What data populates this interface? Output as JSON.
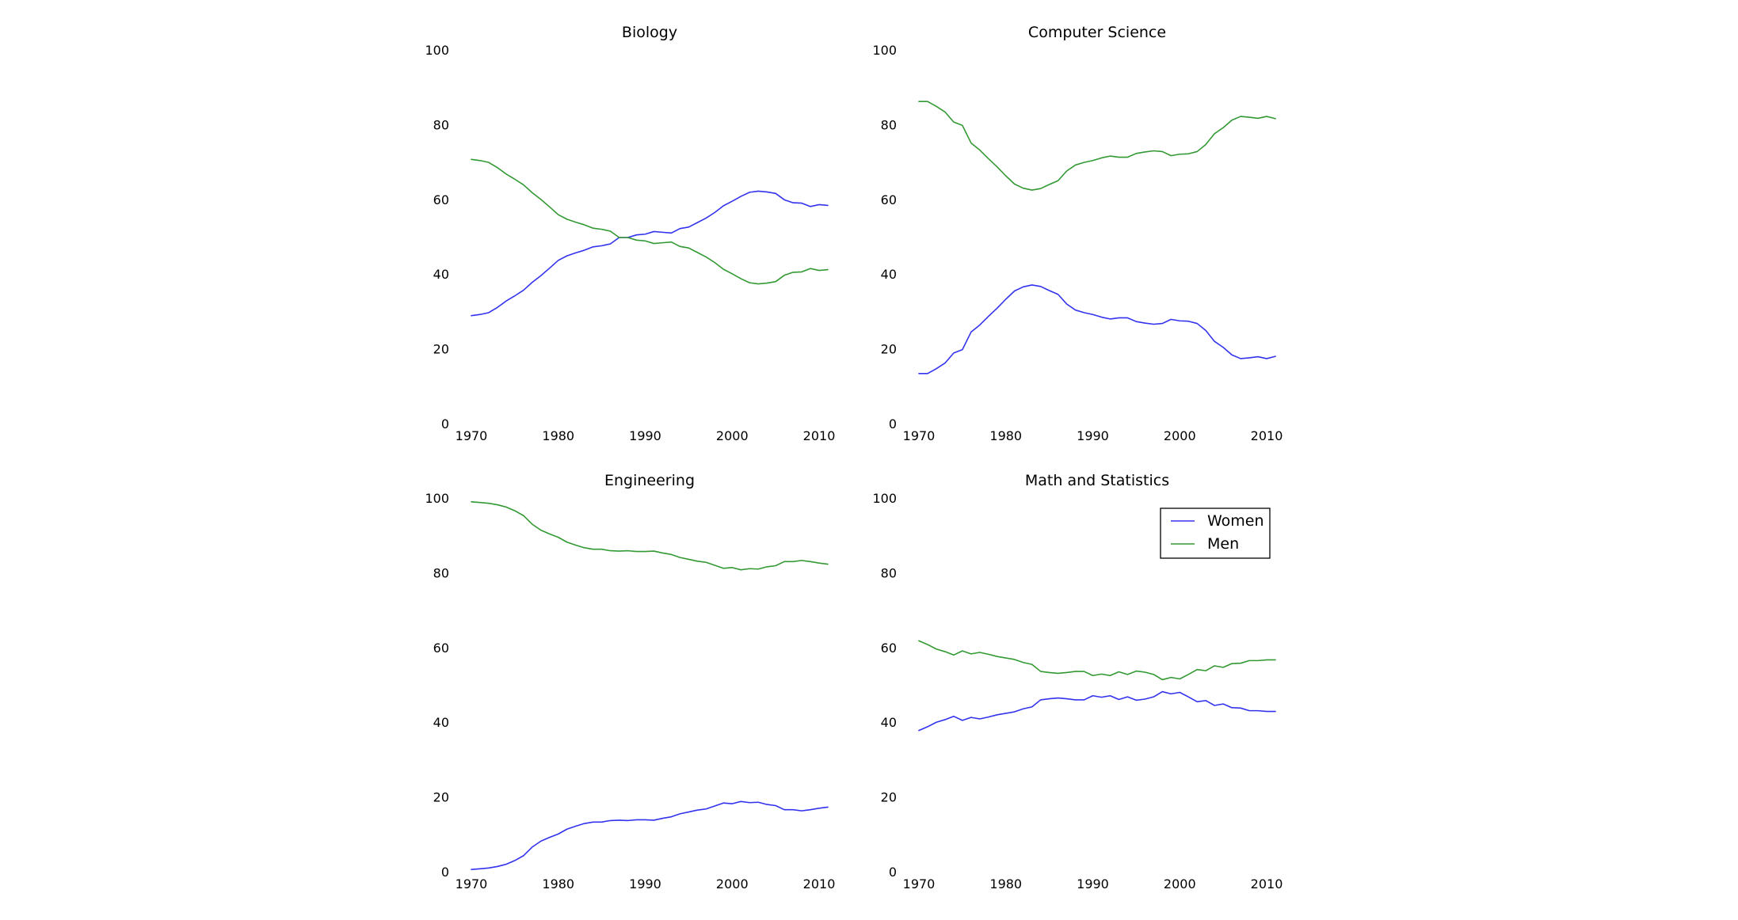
{
  "chart_data": [
    {
      "type": "line",
      "title": "Biology",
      "xlabel": "",
      "ylabel": "",
      "xlim": [
        1970,
        2011
      ],
      "ylim": [
        0,
        100
      ],
      "xticks": [
        "1970",
        "1980",
        "1990",
        "2000",
        "2010"
      ],
      "yticks": [
        "0",
        "20",
        "40",
        "60",
        "80",
        "100"
      ],
      "grid": false,
      "x": [
        1970,
        1971,
        1972,
        1973,
        1974,
        1975,
        1976,
        1977,
        1978,
        1979,
        1980,
        1981,
        1982,
        1983,
        1984,
        1985,
        1986,
        1987,
        1988,
        1989,
        1990,
        1991,
        1992,
        1993,
        1994,
        1995,
        1996,
        1997,
        1998,
        1999,
        2000,
        2001,
        2002,
        2003,
        2004,
        2005,
        2006,
        2007,
        2008,
        2009,
        2010,
        2011
      ],
      "series": [
        {
          "name": "Women",
          "color": "#3333ee",
          "values": [
            29.1,
            29.4,
            29.9,
            31.3,
            33.0,
            34.4,
            35.9,
            38.0,
            39.8,
            41.8,
            43.9,
            45.1,
            45.9,
            46.6,
            47.5,
            47.8,
            48.3,
            50.0,
            50.0,
            50.7,
            50.9,
            51.6,
            51.4,
            51.2,
            52.4,
            52.8,
            54.0,
            55.2,
            56.7,
            58.5,
            59.7,
            61.0,
            62.1,
            62.4,
            62.2,
            61.8,
            60.1,
            59.3,
            59.2,
            58.3,
            58.8,
            58.6
          ]
        },
        {
          "name": "Men",
          "color": "#339933",
          "values": [
            70.9,
            70.6,
            70.1,
            68.7,
            67.0,
            65.6,
            64.1,
            62.0,
            60.2,
            58.2,
            56.1,
            54.9,
            54.1,
            53.4,
            52.5,
            52.2,
            51.7,
            50.0,
            50.0,
            49.3,
            49.1,
            48.4,
            48.6,
            48.8,
            47.6,
            47.2,
            46.0,
            44.8,
            43.3,
            41.5,
            40.3,
            39.0,
            37.9,
            37.6,
            37.8,
            38.2,
            39.9,
            40.7,
            40.8,
            41.7,
            41.2,
            41.4
          ]
        }
      ]
    },
    {
      "type": "line",
      "title": "Computer Science",
      "xlabel": "",
      "ylabel": "",
      "xlim": [
        1970,
        2011
      ],
      "ylim": [
        0,
        100
      ],
      "xticks": [
        "1970",
        "1980",
        "1990",
        "2000",
        "2010"
      ],
      "yticks": [
        "0",
        "20",
        "40",
        "60",
        "80",
        "100"
      ],
      "grid": false,
      "x": [
        1970,
        1971,
        1972,
        1973,
        1974,
        1975,
        1976,
        1977,
        1978,
        1979,
        1980,
        1981,
        1982,
        1983,
        1984,
        1985,
        1986,
        1987,
        1988,
        1989,
        1990,
        1991,
        1992,
        1993,
        1994,
        1995,
        1996,
        1997,
        1998,
        1999,
        2000,
        2001,
        2002,
        2003,
        2004,
        2005,
        2006,
        2007,
        2008,
        2009,
        2010,
        2011
      ],
      "series": [
        {
          "name": "Women",
          "color": "#3333ee",
          "values": [
            13.6,
            13.6,
            14.9,
            16.4,
            19.1,
            20.0,
            24.7,
            26.6,
            28.9,
            31.1,
            33.5,
            35.7,
            36.8,
            37.3,
            36.9,
            35.8,
            34.8,
            32.2,
            30.6,
            29.9,
            29.4,
            28.7,
            28.2,
            28.5,
            28.5,
            27.5,
            27.1,
            26.8,
            27.0,
            28.1,
            27.7,
            27.6,
            27.0,
            25.1,
            22.2,
            20.6,
            18.6,
            17.6,
            17.8,
            18.1,
            17.6,
            18.2
          ]
        },
        {
          "name": "Men",
          "color": "#339933",
          "values": [
            86.4,
            86.4,
            85.1,
            83.6,
            80.9,
            80.0,
            75.3,
            73.4,
            71.1,
            68.9,
            66.5,
            64.3,
            63.2,
            62.7,
            63.1,
            64.2,
            65.2,
            67.8,
            69.4,
            70.1,
            70.6,
            71.3,
            71.8,
            71.5,
            71.5,
            72.5,
            72.9,
            73.2,
            73.0,
            71.9,
            72.3,
            72.4,
            73.0,
            74.9,
            77.8,
            79.4,
            81.4,
            82.4,
            82.2,
            81.9,
            82.4,
            81.8
          ]
        }
      ]
    },
    {
      "type": "line",
      "title": "Engineering",
      "xlabel": "",
      "ylabel": "",
      "xlim": [
        1970,
        2011
      ],
      "ylim": [
        0,
        100
      ],
      "xticks": [
        "1970",
        "1980",
        "1990",
        "2000",
        "2010"
      ],
      "yticks": [
        "0",
        "20",
        "40",
        "60",
        "80",
        "100"
      ],
      "grid": false,
      "x": [
        1970,
        1971,
        1972,
        1973,
        1974,
        1975,
        1976,
        1977,
        1978,
        1979,
        1980,
        1981,
        1982,
        1983,
        1984,
        1985,
        1986,
        1987,
        1988,
        1989,
        1990,
        1991,
        1992,
        1993,
        1994,
        1995,
        1996,
        1997,
        1998,
        1999,
        2000,
        2001,
        2002,
        2003,
        2004,
        2005,
        2006,
        2007,
        2008,
        2009,
        2010,
        2011
      ],
      "series": [
        {
          "name": "Women",
          "color": "#3333ee",
          "values": [
            0.8,
            1.0,
            1.2,
            1.6,
            2.2,
            3.2,
            4.5,
            6.8,
            8.4,
            9.4,
            10.3,
            11.6,
            12.4,
            13.1,
            13.5,
            13.5,
            13.9,
            14.0,
            13.9,
            14.1,
            14.1,
            14.0,
            14.5,
            14.9,
            15.7,
            16.2,
            16.7,
            17.0,
            17.8,
            18.6,
            18.4,
            19.0,
            18.7,
            18.8,
            18.2,
            17.9,
            16.8,
            16.8,
            16.5,
            16.8,
            17.2,
            17.5
          ]
        },
        {
          "name": "Men",
          "color": "#339933",
          "values": [
            99.2,
            99.0,
            98.8,
            98.4,
            97.8,
            96.8,
            95.5,
            93.2,
            91.6,
            90.6,
            89.7,
            88.4,
            87.6,
            86.9,
            86.5,
            86.5,
            86.1,
            86.0,
            86.1,
            85.9,
            85.9,
            86.0,
            85.5,
            85.1,
            84.3,
            83.8,
            83.3,
            83.0,
            82.2,
            81.4,
            81.6,
            81.0,
            81.3,
            81.2,
            81.8,
            82.1,
            83.2,
            83.2,
            83.5,
            83.2,
            82.8,
            82.5
          ]
        }
      ]
    },
    {
      "type": "line",
      "title": "Math and Statistics",
      "xlabel": "",
      "ylabel": "",
      "xlim": [
        1970,
        2011
      ],
      "ylim": [
        0,
        100
      ],
      "xticks": [
        "1970",
        "1980",
        "1990",
        "2000",
        "2010"
      ],
      "yticks": [
        "0",
        "20",
        "40",
        "60",
        "80",
        "100"
      ],
      "grid": false,
      "legend_position": "top-right",
      "x": [
        1970,
        1971,
        1972,
        1973,
        1974,
        1975,
        1976,
        1977,
        1978,
        1979,
        1980,
        1981,
        1982,
        1983,
        1984,
        1985,
        1986,
        1987,
        1988,
        1989,
        1990,
        1991,
        1992,
        1993,
        1994,
        1995,
        1996,
        1997,
        1998,
        1999,
        2000,
        2001,
        2002,
        2003,
        2004,
        2005,
        2006,
        2007,
        2008,
        2009,
        2010,
        2011
      ],
      "series": [
        {
          "name": "Women",
          "color": "#3333ee",
          "values": [
            38.0,
            39.0,
            40.2,
            40.9,
            41.8,
            40.7,
            41.5,
            41.1,
            41.6,
            42.2,
            42.6,
            43.0,
            43.8,
            44.3,
            46.2,
            46.5,
            46.7,
            46.5,
            46.2,
            46.2,
            47.3,
            46.9,
            47.3,
            46.3,
            47.0,
            46.1,
            46.4,
            47.0,
            48.4,
            47.8,
            48.2,
            47.0,
            45.7,
            46.0,
            44.7,
            45.1,
            44.1,
            44.0,
            43.3,
            43.3,
            43.1,
            43.1
          ]
        },
        {
          "name": "Men",
          "color": "#339933",
          "values": [
            62.0,
            61.0,
            59.8,
            59.1,
            58.2,
            59.3,
            58.5,
            58.9,
            58.4,
            57.8,
            57.4,
            57.0,
            56.2,
            55.7,
            53.8,
            53.5,
            53.3,
            53.5,
            53.8,
            53.8,
            52.7,
            53.1,
            52.7,
            53.7,
            53.0,
            53.9,
            53.6,
            53.0,
            51.6,
            52.2,
            51.8,
            53.0,
            54.3,
            54.0,
            55.3,
            54.9,
            55.9,
            56.0,
            56.7,
            56.7,
            56.9,
            56.9
          ]
        }
      ]
    }
  ]
}
